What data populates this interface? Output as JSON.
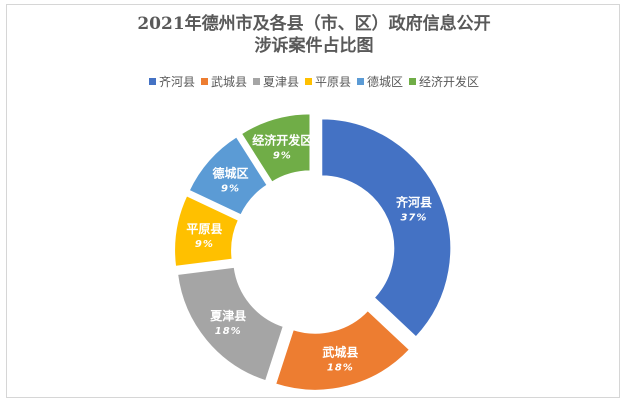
{
  "chart_data": {
    "type": "pie",
    "title_lines": [
      "2021年德州市及各县（市、区）政府信息公开",
      "涉诉案件占比图"
    ],
    "categories": [
      "齐河县",
      "武城县",
      "夏津县",
      "平原县",
      "德城区",
      "经济开发区"
    ],
    "values": [
      37,
      18,
      18,
      9,
      9,
      9
    ],
    "data_labels": [
      "37%",
      "18%",
      "18%",
      "9%",
      "9%",
      "9%"
    ],
    "colors": [
      "#4472C4",
      "#ED7D31",
      "#A5A5A5",
      "#FFC000",
      "#5B9BD5",
      "#70AD47"
    ],
    "legend_position": "top",
    "style": "donut"
  }
}
